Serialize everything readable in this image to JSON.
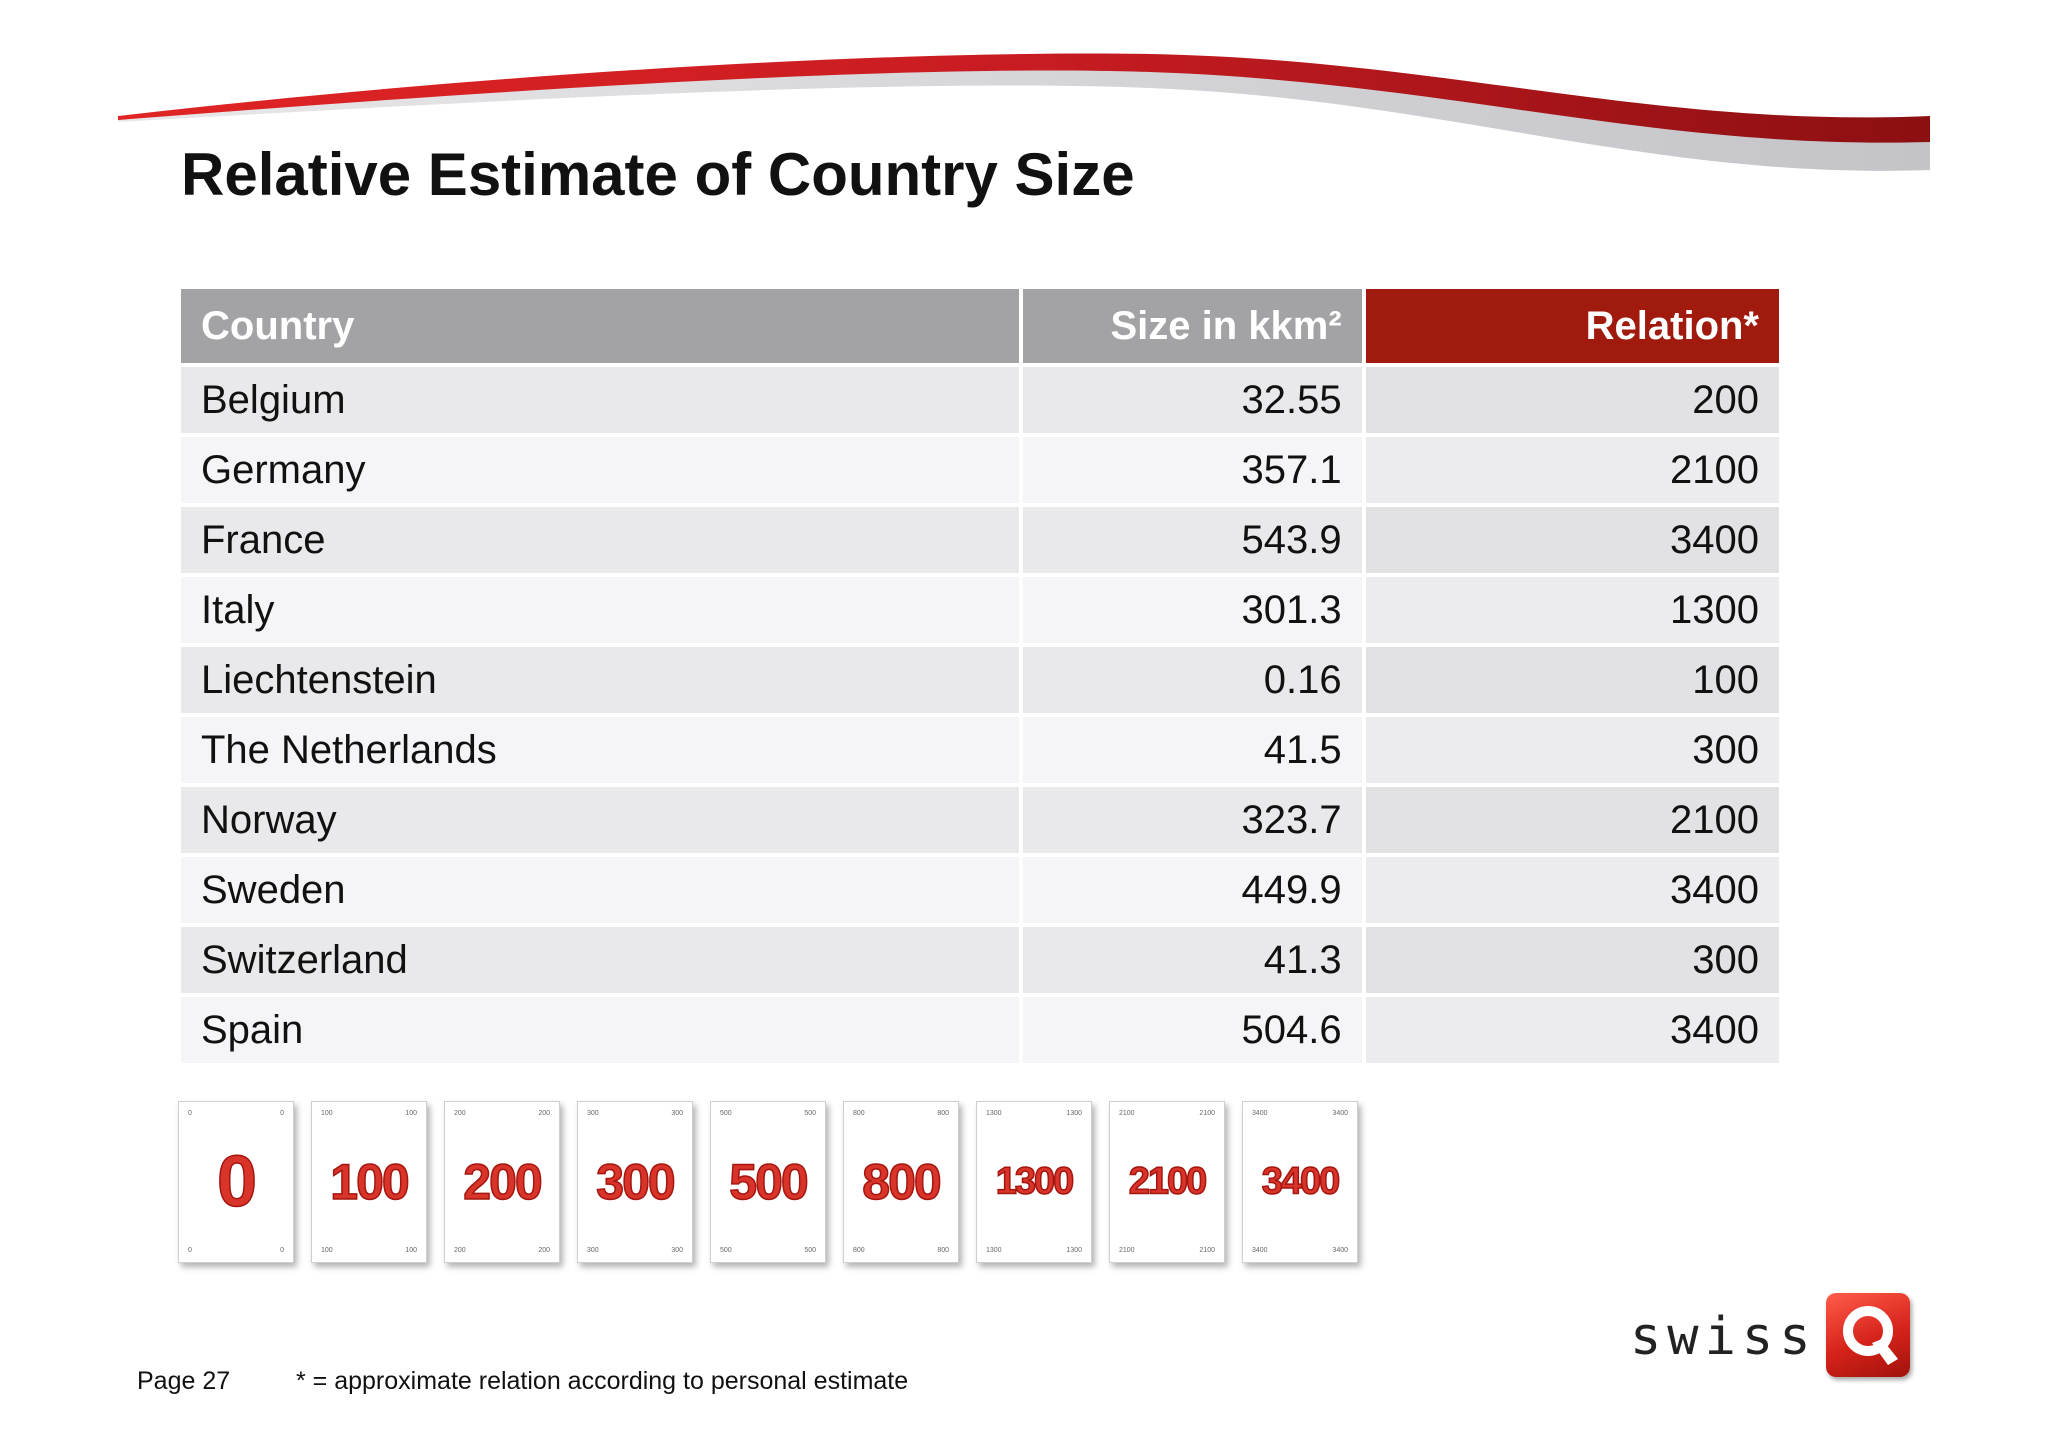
{
  "title": "Relative Estimate of Country Size",
  "table": {
    "headers": {
      "country": "Country",
      "size": "Size in kkm²",
      "relation": "Relation*"
    },
    "rows": [
      {
        "country": "Belgium",
        "size": "32.55",
        "relation": "200"
      },
      {
        "country": "Germany",
        "size": "357.1",
        "relation": "2100"
      },
      {
        "country": "France",
        "size": "543.9",
        "relation": "3400"
      },
      {
        "country": "Italy",
        "size": "301.3",
        "relation": "1300"
      },
      {
        "country": "Liechtenstein",
        "size": "0.16",
        "relation": "100"
      },
      {
        "country": "The Netherlands",
        "size": "41.5",
        "relation": "300"
      },
      {
        "country": "Norway",
        "size": "323.7",
        "relation": "2100"
      },
      {
        "country": "Sweden",
        "size": "449.9",
        "relation": "3400"
      },
      {
        "country": "Switzerland",
        "size": "41.3",
        "relation": "300"
      },
      {
        "country": "Spain",
        "size": "504.6",
        "relation": "3400"
      }
    ]
  },
  "cards": [
    "0",
    "100",
    "200",
    "300",
    "500",
    "800",
    "1300",
    "2100",
    "3400"
  ],
  "logo": {
    "word": "swiss",
    "letter": "Q"
  },
  "footer": {
    "page": "Page 27",
    "note": "* = approximate relation according to personal estimate"
  },
  "colors": {
    "accent": "#a01a0e",
    "header_gray": "#a3a3a6",
    "card_red": "#d8342a"
  }
}
